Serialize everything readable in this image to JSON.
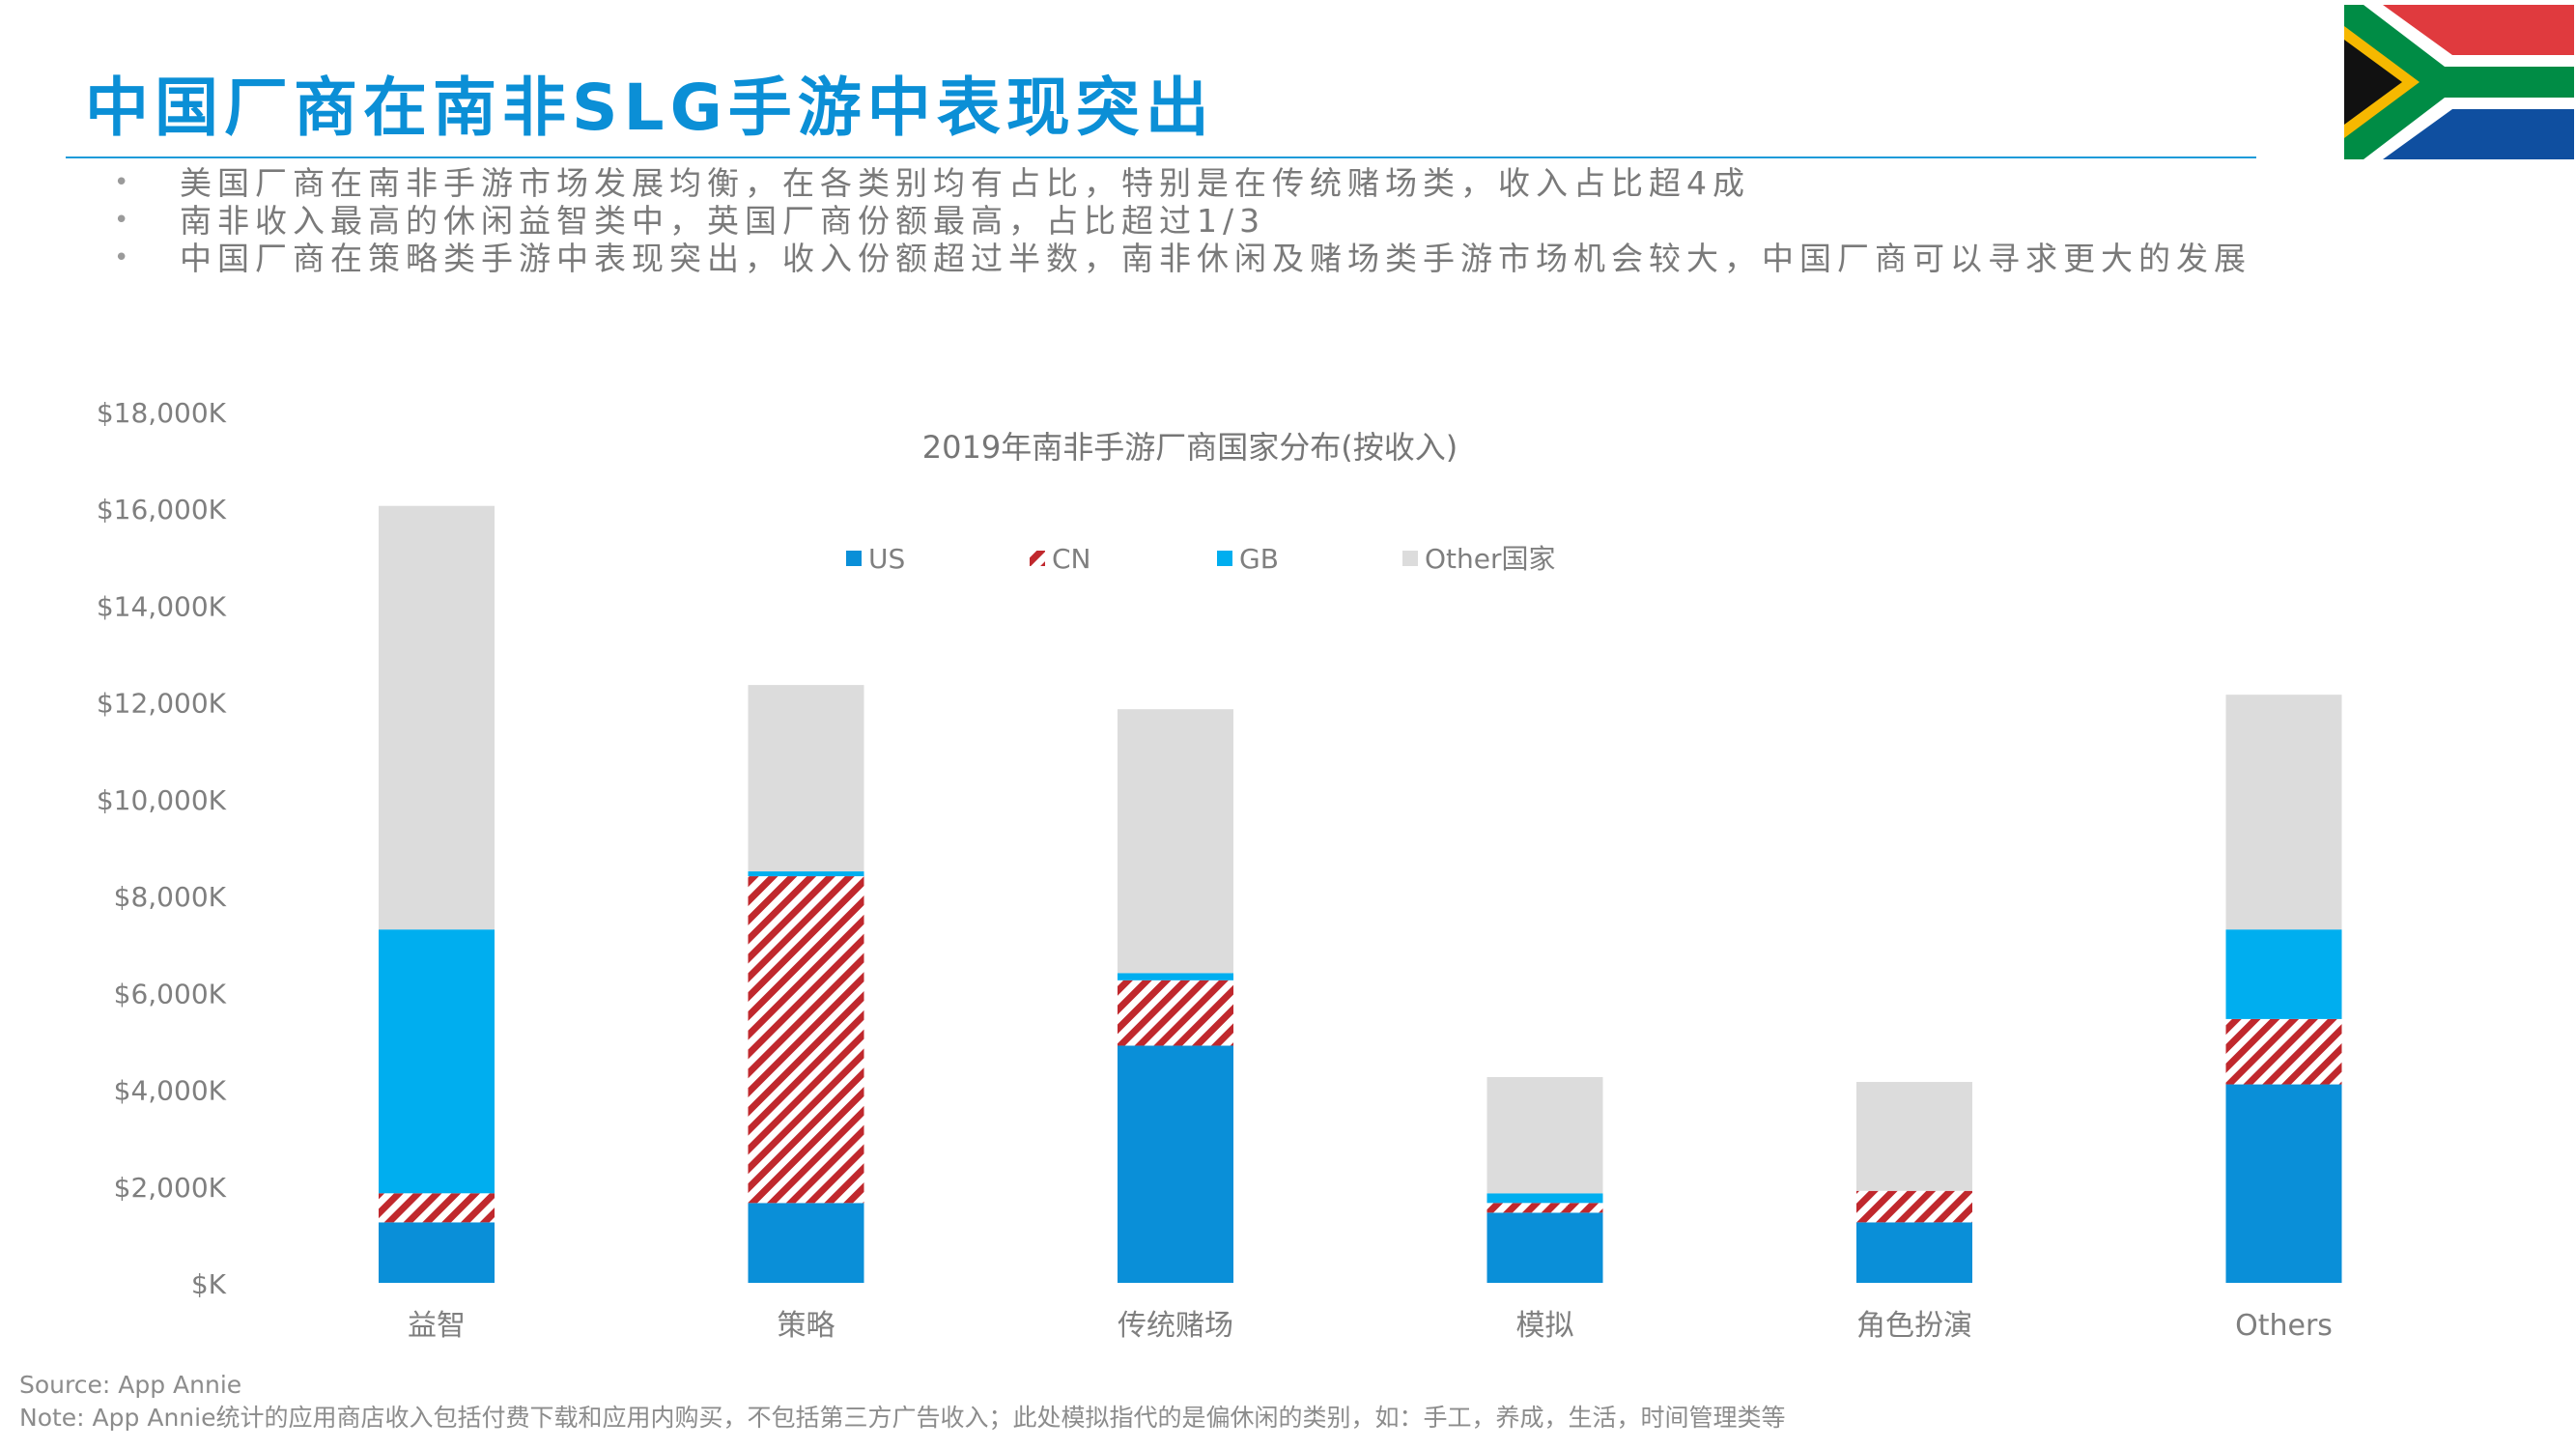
{
  "header": {
    "title": "中国厂商在南非SLG手游中表现突出",
    "bullets": [
      "美国厂商在南非手游市场发展均衡，在各类别均有占比，特别是在传统赌场类，收入占比超4成",
      "南非收入最高的休闲益智类中，英国厂商份额最高，占比超过1/3",
      "中国厂商在策略类手游中表现突出，收入份额超过半数，南非休闲及赌场类手游市场机会较大，中国厂商可以寻求更大的发展"
    ]
  },
  "flag": {
    "icon": "south-africa-flag-icon"
  },
  "chart_data": {
    "type": "bar",
    "stacked": true,
    "title": "2019年南非手游厂商国家分布(按收入)",
    "categories": [
      "益智",
      "策略",
      "传统赌场",
      "模拟",
      "角色扮演",
      "Others"
    ],
    "series": [
      {
        "name": "US",
        "values": [
          1250,
          1650,
          4900,
          1450,
          1250,
          4100
        ],
        "color": "#0a8fd8",
        "pattern": "solid"
      },
      {
        "name": "CN",
        "values": [
          600,
          6750,
          1350,
          200,
          650,
          1350
        ],
        "color": "#c0282d",
        "pattern": "hatch"
      },
      {
        "name": "GB",
        "values": [
          5450,
          100,
          150,
          200,
          0,
          1850
        ],
        "color": "#00aeef",
        "pattern": "solid"
      },
      {
        "name": "Other国家",
        "values": [
          8750,
          3850,
          5450,
          2400,
          2250,
          4850
        ],
        "color": "#dcdcdc",
        "pattern": "solid"
      }
    ],
    "ylim": [
      0,
      18000
    ],
    "yticks": [
      0,
      2000,
      4000,
      6000,
      8000,
      10000,
      12000,
      14000,
      16000,
      18000
    ],
    "ytick_labels": [
      "$K",
      "$2,000K",
      "$4,000K",
      "$6,000K",
      "$8,000K",
      "$10,000K",
      "$12,000K",
      "$14,000K",
      "$16,000K",
      "$18,000K"
    ],
    "grid": false,
    "legend": "top-center"
  },
  "footer": {
    "source": "Source: App Annie",
    "note": "Note: App Annie统计的应用商店收入包括付费下载和应用内购买，不包括第三方广告收入；此处模拟指代的是偏休闲的类别，如：手工，养成，生活，时间管理类等"
  }
}
